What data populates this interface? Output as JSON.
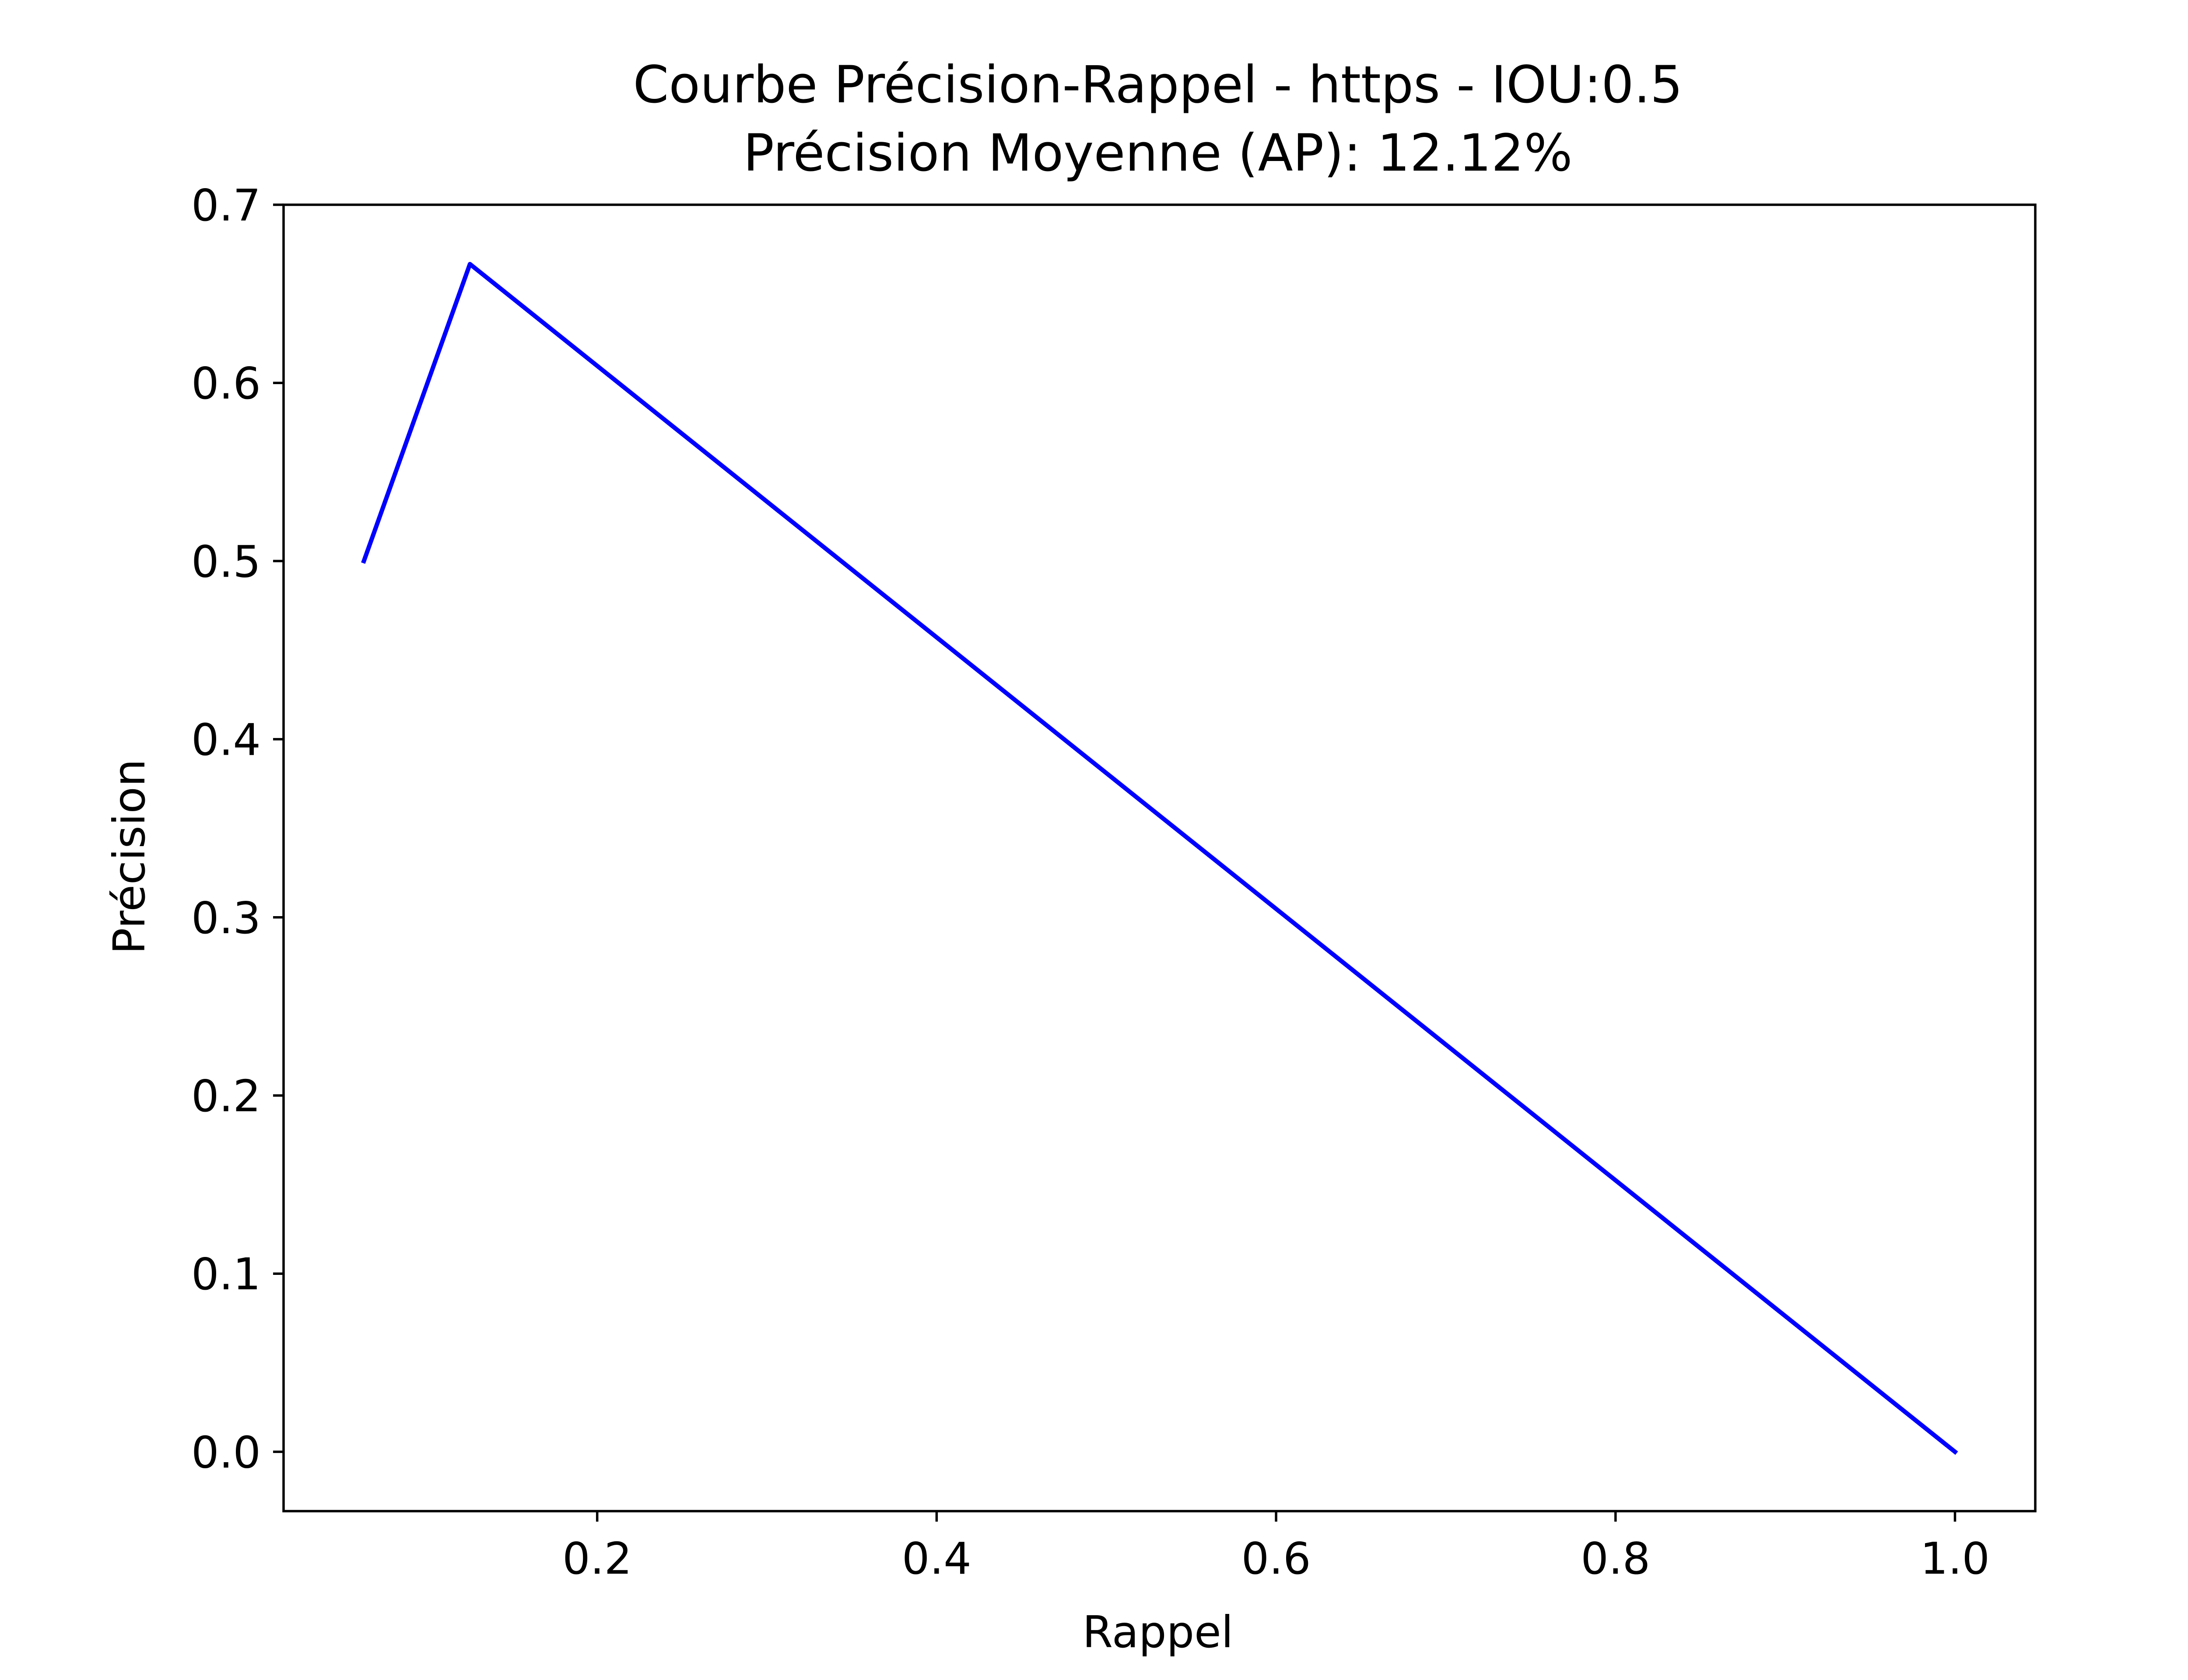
{
  "chart_data": {
    "type": "line",
    "title_lines": [
      "Courbe Précision-Rappel - https - IOU:0.5",
      "Précision Moyenne (AP): 12.12%"
    ],
    "xlabel": "Rappel",
    "ylabel": "Précision",
    "xlim": [
      0.0152,
      1.0473
    ],
    "ylim": [
      -0.0333,
      0.7
    ],
    "xticks": [
      0.2,
      0.4,
      0.6,
      0.8,
      1.0
    ],
    "xtick_labels": [
      "0.2",
      "0.4",
      "0.6",
      "0.8",
      "1.0"
    ],
    "yticks": [
      0.0,
      0.1,
      0.2,
      0.3,
      0.4,
      0.5,
      0.6,
      0.7
    ],
    "ytick_labels": [
      "0.0",
      "0.1",
      "0.2",
      "0.3",
      "0.4",
      "0.5",
      "0.6",
      "0.7"
    ],
    "grid": false,
    "legend": false,
    "series": [
      {
        "color": "#0000ff",
        "x": [
          0.0625,
          0.125,
          1.0
        ],
        "y": [
          0.5,
          0.6667,
          0.0
        ]
      }
    ]
  }
}
